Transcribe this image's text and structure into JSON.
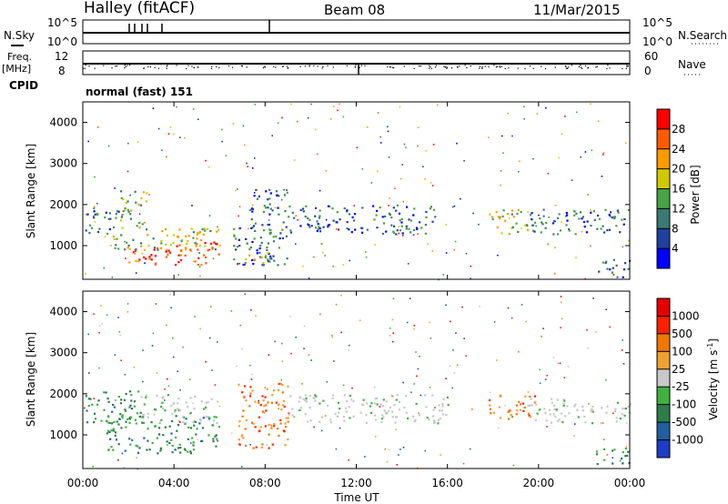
{
  "header": {
    "station": "Halley (fitACF)",
    "beam": "Beam 08",
    "date": "11/Mar/2015"
  },
  "top_panels": {
    "nsky_label": "N.Sky",
    "nsky_ticks": [
      "10^5",
      "10^0"
    ],
    "nsearch_label": "N.Search",
    "nsearch_ticks": [
      "10^5",
      "10^0"
    ],
    "freq_label": "Freq.",
    "freq_unit": "[MHz]",
    "freq_ticks": [
      "12",
      "8"
    ],
    "nave_label": "Nave",
    "nave_ticks": [
      "60",
      "0"
    ],
    "cpid_label": "CPID",
    "cpid_value": "normal (fast) 151"
  },
  "chart_data": [
    {
      "type": "heatmap",
      "name": "power",
      "ylabel": "Slant Range [km]",
      "xlabel": "Time UT",
      "x_ticks": [
        "00:00",
        "04:00",
        "08:00",
        "12:00",
        "16:00",
        "20:00",
        "00:00"
      ],
      "xlim_hours": [
        0,
        24
      ],
      "ylim": [
        180,
        4500
      ],
      "y_ticks": [
        1000,
        2000,
        3000,
        4000
      ],
      "colorbar": {
        "label": "Power [dB]",
        "ticks": [
          "4",
          "8",
          "12",
          "16",
          "20",
          "24",
          "28"
        ],
        "colors": [
          "#0000ff",
          "#2040a0",
          "#3a7a70",
          "#46a346",
          "#d2c800",
          "#ff9900",
          "#ff5a00",
          "#ff0000"
        ]
      },
      "regions": [
        {
          "t0": 0.1,
          "t1": 1.6,
          "r0": 1300,
          "r1": 2000,
          "level": "weak"
        },
        {
          "t0": 1.2,
          "t1": 6.0,
          "r0": 900,
          "r1": 1500,
          "level": "medium"
        },
        {
          "t0": 2.0,
          "t1": 6.0,
          "r0": 550,
          "r1": 1100,
          "level": "strong"
        },
        {
          "t0": 1.6,
          "t1": 2.8,
          "r0": 1500,
          "r1": 2400,
          "level": "medium"
        },
        {
          "t0": 6.5,
          "t1": 9.0,
          "r0": 550,
          "r1": 1600,
          "level": "weak"
        },
        {
          "t0": 7.0,
          "t1": 8.2,
          "r0": 600,
          "r1": 1000,
          "level": "medium"
        },
        {
          "t0": 7.3,
          "t1": 9.0,
          "r0": 1500,
          "r1": 2400,
          "level": "weak"
        },
        {
          "t0": 9.0,
          "t1": 15.5,
          "r0": 1300,
          "r1": 2000,
          "level": "weak"
        },
        {
          "t0": 17.8,
          "t1": 19.8,
          "r0": 1300,
          "r1": 1900,
          "level": "medium"
        },
        {
          "t0": 19.5,
          "t1": 24.0,
          "r0": 1300,
          "r1": 1900,
          "level": "weak"
        },
        {
          "t0": 22.5,
          "t1": 24.0,
          "r0": 250,
          "r1": 700,
          "level": "weak"
        }
      ]
    },
    {
      "type": "heatmap",
      "name": "velocity",
      "ylabel": "Slant Range [km]",
      "xlabel": "Time UT",
      "x_ticks": [
        "00:00",
        "04:00",
        "08:00",
        "12:00",
        "16:00",
        "20:00",
        "00:00"
      ],
      "xlim_hours": [
        0,
        24
      ],
      "ylim": [
        180,
        4500
      ],
      "y_ticks": [
        1000,
        2000,
        3000,
        4000
      ],
      "colorbar": {
        "label": "Velocity [m s",
        "label_superscript": "-1",
        "label_end": "]",
        "ticks": [
          "1000",
          "500",
          "100",
          "25",
          "-25",
          "-100",
          "-500",
          "-1000"
        ],
        "colors": [
          "#1e3cc8",
          "#2060a0",
          "#2e7d4a",
          "#40b040",
          "#c8c8c8",
          "#f0a030",
          "#f07800",
          "#ff2000",
          "#e60000"
        ]
      },
      "regions": [
        {
          "t0": 0.1,
          "t1": 2.5,
          "r0": 1300,
          "r1": 2100,
          "level": "green"
        },
        {
          "t0": 1.0,
          "t1": 6.0,
          "r0": 550,
          "r1": 1500,
          "level": "green"
        },
        {
          "t0": 2.5,
          "t1": 6.0,
          "r0": 1300,
          "r1": 2000,
          "level": "grey"
        },
        {
          "t0": 6.8,
          "t1": 9.0,
          "r0": 700,
          "r1": 2300,
          "level": "orange"
        },
        {
          "t0": 9.0,
          "t1": 16.0,
          "r0": 1300,
          "r1": 2000,
          "level": "grey"
        },
        {
          "t0": 17.8,
          "t1": 19.8,
          "r0": 1400,
          "r1": 2000,
          "level": "orange"
        },
        {
          "t0": 19.5,
          "t1": 24.0,
          "r0": 1300,
          "r1": 1900,
          "level": "grey"
        },
        {
          "t0": 22.5,
          "t1": 24.0,
          "r0": 250,
          "r1": 700,
          "level": "green"
        }
      ]
    }
  ]
}
